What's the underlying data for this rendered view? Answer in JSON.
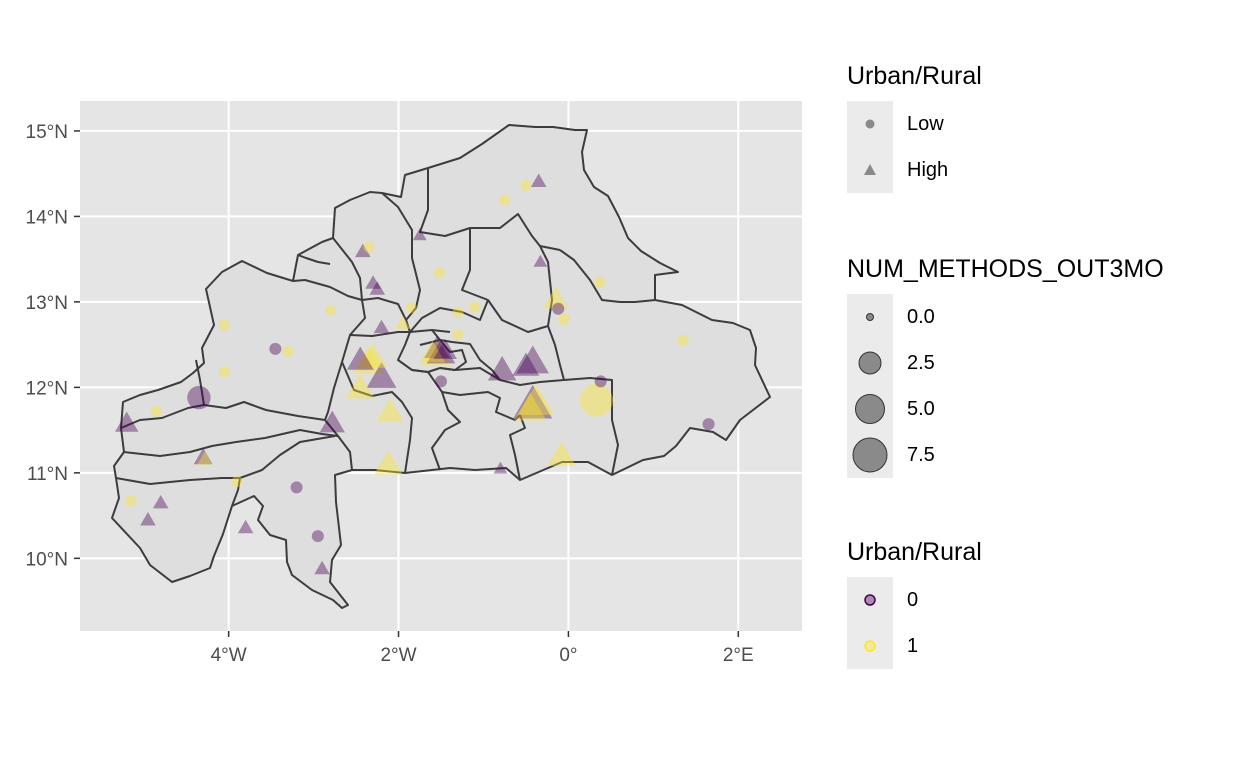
{
  "chart_data": {
    "type": "scatter",
    "title": "",
    "xlabel": "",
    "ylabel": "",
    "xlim": [
      -5.75,
      2.75
    ],
    "ylim": [
      9.15,
      15.35
    ],
    "x_ticks": [
      {
        "value": -4,
        "label": "4°W"
      },
      {
        "value": -2,
        "label": "2°W"
      },
      {
        "value": 0,
        "label": "0°"
      },
      {
        "value": 2,
        "label": "2°E"
      }
    ],
    "y_ticks": [
      {
        "value": 10,
        "label": "10°N"
      },
      {
        "value": 11,
        "label": "11°N"
      },
      {
        "value": 12,
        "label": "12°N"
      },
      {
        "value": 13,
        "label": "13°N"
      },
      {
        "value": 14,
        "label": "14°N"
      },
      {
        "value": 15,
        "label": "15°N"
      }
    ],
    "grid": true,
    "legend_position": "right",
    "point_alpha": 0.4,
    "colors": {
      "0": "#440154",
      "1": "#fde725"
    },
    "points": [
      {
        "lon": -0.35,
        "lat": 14.41,
        "shape": "High",
        "group": "0",
        "size": 0.5
      },
      {
        "lon": -0.5,
        "lat": 14.36,
        "shape": "Low",
        "group": "1",
        "size": 0.2
      },
      {
        "lon": -0.75,
        "lat": 14.19,
        "shape": "Low",
        "group": "1",
        "size": 0.2
      },
      {
        "lon": -1.75,
        "lat": 13.78,
        "shape": "High",
        "group": "0",
        "size": 0.3
      },
      {
        "lon": -2.35,
        "lat": 13.64,
        "shape": "Low",
        "group": "1",
        "size": 0.2
      },
      {
        "lon": -2.42,
        "lat": 13.59,
        "shape": "High",
        "group": "0",
        "size": 0.5
      },
      {
        "lon": -0.33,
        "lat": 13.47,
        "shape": "High",
        "group": "0",
        "size": 0.3
      },
      {
        "lon": -1.52,
        "lat": 13.34,
        "shape": "Low",
        "group": "1",
        "size": 0.2
      },
      {
        "lon": -2.3,
        "lat": 13.22,
        "shape": "High",
        "group": "0",
        "size": 0.5
      },
      {
        "lon": -2.25,
        "lat": 13.15,
        "shape": "High",
        "group": "0",
        "size": 0.5
      },
      {
        "lon": 0.37,
        "lat": 13.23,
        "shape": "Low",
        "group": "1",
        "size": 0.2
      },
      {
        "lon": -0.15,
        "lat": 13.03,
        "shape": "High",
        "group": "1",
        "size": 2.5
      },
      {
        "lon": -0.12,
        "lat": 12.92,
        "shape": "Low",
        "group": "0",
        "size": 0.3
      },
      {
        "lon": -0.05,
        "lat": 12.8,
        "shape": "Low",
        "group": "1",
        "size": 0.3
      },
      {
        "lon": -1.85,
        "lat": 12.93,
        "shape": "Low",
        "group": "1",
        "size": 0.2
      },
      {
        "lon": -1.1,
        "lat": 12.94,
        "shape": "Low",
        "group": "1",
        "size": 0.2
      },
      {
        "lon": -1.3,
        "lat": 12.88,
        "shape": "Low",
        "group": "1",
        "size": 0.2
      },
      {
        "lon": -2.8,
        "lat": 12.9,
        "shape": "Low",
        "group": "1",
        "size": 0.2
      },
      {
        "lon": -4.05,
        "lat": 12.73,
        "shape": "Low",
        "group": "1",
        "size": 0.2
      },
      {
        "lon": -1.95,
        "lat": 12.75,
        "shape": "High",
        "group": "1",
        "size": 0.5
      },
      {
        "lon": -2.2,
        "lat": 12.7,
        "shape": "High",
        "group": "0",
        "size": 0.5
      },
      {
        "lon": -1.3,
        "lat": 12.62,
        "shape": "Low",
        "group": "1",
        "size": 0.2
      },
      {
        "lon": 1.35,
        "lat": 12.55,
        "shape": "Low",
        "group": "1",
        "size": 0.2
      },
      {
        "lon": -3.45,
        "lat": 12.45,
        "shape": "Low",
        "group": "0",
        "size": 0.3
      },
      {
        "lon": -3.3,
        "lat": 12.42,
        "shape": "Low",
        "group": "1",
        "size": 0.2
      },
      {
        "lon": -2.35,
        "lat": 12.3,
        "shape": "High",
        "group": "1",
        "size": 4.5
      },
      {
        "lon": -2.3,
        "lat": 12.35,
        "shape": "High",
        "group": "1",
        "size": 3.5
      },
      {
        "lon": -2.2,
        "lat": 12.12,
        "shape": "High",
        "group": "0",
        "size": 4.0
      },
      {
        "lon": -2.45,
        "lat": 12.32,
        "shape": "High",
        "group": "0",
        "size": 3.0
      },
      {
        "lon": -1.55,
        "lat": 12.38,
        "shape": "High",
        "group": "1",
        "size": 4.0
      },
      {
        "lon": -1.5,
        "lat": 12.4,
        "shape": "High",
        "group": "0",
        "size": 3.5
      },
      {
        "lon": -1.55,
        "lat": 12.45,
        "shape": "High",
        "group": "0",
        "size": 2.5
      },
      {
        "lon": -1.45,
        "lat": 12.43,
        "shape": "High",
        "group": "0",
        "size": 2.0
      },
      {
        "lon": -1.6,
        "lat": 12.4,
        "shape": "High",
        "group": "1",
        "size": 2.5
      },
      {
        "lon": -1.5,
        "lat": 12.07,
        "shape": "Low",
        "group": "0",
        "size": 0.3
      },
      {
        "lon": -0.78,
        "lat": 12.2,
        "shape": "High",
        "group": "0",
        "size": 3.5
      },
      {
        "lon": -0.42,
        "lat": 12.3,
        "shape": "High",
        "group": "0",
        "size": 5.0
      },
      {
        "lon": -0.5,
        "lat": 12.25,
        "shape": "High",
        "group": "0",
        "size": 3.0
      },
      {
        "lon": -4.05,
        "lat": 12.18,
        "shape": "Low",
        "group": "1",
        "size": 0.2
      },
      {
        "lon": 0.38,
        "lat": 12.07,
        "shape": "Low",
        "group": "0",
        "size": 0.3
      },
      {
        "lon": -2.45,
        "lat": 11.99,
        "shape": "High",
        "group": "1",
        "size": 3.5
      },
      {
        "lon": -4.35,
        "lat": 11.88,
        "shape": "Low",
        "group": "0",
        "size": 3.0
      },
      {
        "lon": 0.33,
        "lat": 11.85,
        "shape": "Low",
        "group": "1",
        "size": 7.5
      },
      {
        "lon": -0.42,
        "lat": 11.8,
        "shape": "High",
        "group": "0",
        "size": 8.0
      },
      {
        "lon": -0.38,
        "lat": 11.83,
        "shape": "High",
        "group": "1",
        "size": 6.5
      },
      {
        "lon": -0.45,
        "lat": 11.75,
        "shape": "High",
        "group": "1",
        "size": 5.0
      },
      {
        "lon": -2.1,
        "lat": 11.72,
        "shape": "High",
        "group": "1",
        "size": 3.0
      },
      {
        "lon": -4.85,
        "lat": 11.72,
        "shape": "Low",
        "group": "1",
        "size": 0.2
      },
      {
        "lon": -5.2,
        "lat": 11.58,
        "shape": "High",
        "group": "0",
        "size": 2.0
      },
      {
        "lon": -2.78,
        "lat": 11.58,
        "shape": "High",
        "group": "0",
        "size": 2.5
      },
      {
        "lon": 1.65,
        "lat": 11.57,
        "shape": "Low",
        "group": "0",
        "size": 0.3
      },
      {
        "lon": -0.08,
        "lat": 11.2,
        "shape": "High",
        "group": "1",
        "size": 3.5
      },
      {
        "lon": -4.3,
        "lat": 11.18,
        "shape": "High",
        "group": "0",
        "size": 1.0
      },
      {
        "lon": -4.28,
        "lat": 11.16,
        "shape": "High",
        "group": "1",
        "size": 0.5
      },
      {
        "lon": -2.12,
        "lat": 11.1,
        "shape": "High",
        "group": "1",
        "size": 3.5
      },
      {
        "lon": -0.8,
        "lat": 11.05,
        "shape": "High",
        "group": "0",
        "size": 0.3
      },
      {
        "lon": -3.9,
        "lat": 10.9,
        "shape": "Low",
        "group": "1",
        "size": 0.2
      },
      {
        "lon": -3.2,
        "lat": 10.83,
        "shape": "Low",
        "group": "0",
        "size": 0.3
      },
      {
        "lon": -5.15,
        "lat": 10.67,
        "shape": "Low",
        "group": "1",
        "size": 0.2
      },
      {
        "lon": -4.8,
        "lat": 10.65,
        "shape": "High",
        "group": "0",
        "size": 0.5
      },
      {
        "lon": -4.95,
        "lat": 10.45,
        "shape": "High",
        "group": "0",
        "size": 0.5
      },
      {
        "lon": -3.8,
        "lat": 10.36,
        "shape": "High",
        "group": "0",
        "size": 0.5
      },
      {
        "lon": -2.95,
        "lat": 10.26,
        "shape": "Low",
        "group": "0",
        "size": 0.3
      },
      {
        "lon": -2.9,
        "lat": 9.88,
        "shape": "High",
        "group": "0",
        "size": 0.5
      }
    ]
  },
  "legends": {
    "shape": {
      "title": "Urban/Rural",
      "items": [
        {
          "label": "Low",
          "shape": "circle"
        },
        {
          "label": "High",
          "shape": "triangle"
        }
      ]
    },
    "size": {
      "title": "NUM_METHODS_OUT3MO",
      "items": [
        {
          "label": "0.0",
          "value": 0.0
        },
        {
          "label": "2.5",
          "value": 2.5
        },
        {
          "label": "5.0",
          "value": 5.0
        },
        {
          "label": "7.5",
          "value": 7.5
        }
      ]
    },
    "color": {
      "title": "Urban/Rural",
      "items": [
        {
          "label": "0",
          "color": "#440154"
        },
        {
          "label": "1",
          "color": "#fde725"
        }
      ]
    }
  }
}
